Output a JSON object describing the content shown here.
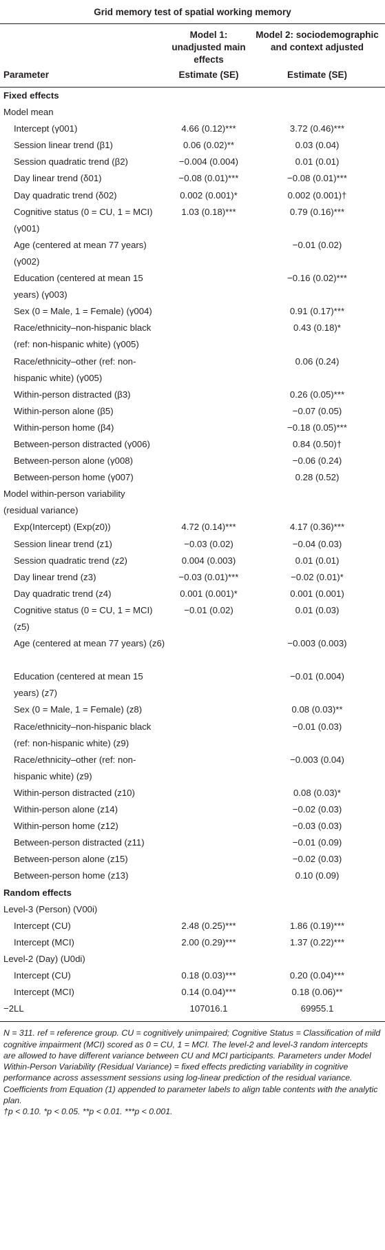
{
  "title": "Grid memory test of spatial working memory",
  "header": {
    "model1": "Model 1: unadjusted main effects",
    "model2": "Model 2: sociodemographic and context adjusted",
    "parameter": "Parameter",
    "estimate1": "Estimate (SE)",
    "estimate2": "Estimate (SE)"
  },
  "rows": [
    {
      "label": "Fixed effects",
      "level": 0,
      "m1": "",
      "m2": ""
    },
    {
      "label": "Model mean",
      "level": 1,
      "m1": "",
      "m2": ""
    },
    {
      "label": "Intercept (γ001)",
      "level": 2,
      "m1": "4.66 (0.12)***",
      "m2": "3.72 (0.46)***"
    },
    {
      "label": "Session linear trend (β1)",
      "level": 2,
      "m1": "0.06 (0.02)**",
      "m2": "0.03 (0.04)"
    },
    {
      "label": "Session quadratic trend (β2)",
      "level": 2,
      "m1": "−0.004 (0.004)",
      "m2": "0.01 (0.01)"
    },
    {
      "label": "Day linear trend (δ01)",
      "level": 2,
      "m1": "−0.08 (0.01)***",
      "m2": "−0.08 (0.01)***"
    },
    {
      "label": "Day quadratic trend (δ02)",
      "level": 2,
      "m1": "0.002 (0.001)*",
      "m2": "0.002 (0.001)†"
    },
    {
      "label": "Cognitive status (0 = CU, 1 = MCI) (γ001)",
      "level": 2,
      "tall": true,
      "m1": "1.03 (0.18)***",
      "m2": "0.79 (0.16)***"
    },
    {
      "label": "Age (centered at mean 77 years) (γ002)",
      "level": 2,
      "tall": true,
      "m1": "",
      "m2": "−0.01 (0.02)"
    },
    {
      "label": "Education (centered at mean 15 years) (γ003)",
      "level": 2,
      "tall": true,
      "m1": "",
      "m2": "−0.16 (0.02)***"
    },
    {
      "label": "Sex (0 = Male, 1 = Female) (γ004)",
      "level": 2,
      "m1": "",
      "m2": "0.91 (0.17)***"
    },
    {
      "label": "Race/ethnicity–non-hispanic black (ref: non-hispanic white) (γ005)",
      "level": 2,
      "tall": true,
      "m1": "",
      "m2": "0.43 (0.18)*"
    },
    {
      "label": "Race/ethnicity–other (ref: non-hispanic white) (γ005)",
      "level": 2,
      "tall": true,
      "m1": "",
      "m2": "0.06 (0.24)"
    },
    {
      "label": "Within-person distracted (β3)",
      "level": 2,
      "m1": "",
      "m2": "0.26 (0.05)***"
    },
    {
      "label": "Within-person alone (β5)",
      "level": 2,
      "m1": "",
      "m2": "−0.07 (0.05)"
    },
    {
      "label": "Within-person home (β4)",
      "level": 2,
      "m1": "",
      "m2": "−0.18 (0.05)***"
    },
    {
      "label": "Between-person distracted (γ006)",
      "level": 2,
      "m1": "",
      "m2": "0.84 (0.50)†"
    },
    {
      "label": "Between-person alone (γ008)",
      "level": 2,
      "m1": "",
      "m2": "−0.06 (0.24)"
    },
    {
      "label": "Between-person home (γ007)",
      "level": 2,
      "m1": "",
      "m2": "0.28 (0.52)"
    },
    {
      "label": "Model within-person variability (residual variance)",
      "level": 1,
      "tall": true,
      "m1": "",
      "m2": ""
    },
    {
      "label": "Exp(Intercept) (Exp(z0))",
      "level": 2,
      "m1": "4.72 (0.14)***",
      "m2": "4.17 (0.36)***"
    },
    {
      "label": "Session linear trend (z1)",
      "level": 2,
      "m1": "−0.03 (0.02)",
      "m2": "−0.04 (0.03)"
    },
    {
      "label": "Session quadratic trend (z2)",
      "level": 2,
      "m1": "0.004 (0.003)",
      "m2": "0.01 (0.01)"
    },
    {
      "label": "Day linear trend (z3)",
      "level": 2,
      "m1": "−0.03 (0.01)***",
      "m2": "−0.02 (0.01)*"
    },
    {
      "label": "Day quadratic trend (z4)",
      "level": 2,
      "m1": "0.001 (0.001)*",
      "m2": "0.001 (0.001)"
    },
    {
      "label": "Cognitive status (0 = CU, 1 = MCI) (z5)",
      "level": 2,
      "tall": true,
      "m1": "−0.01 (0.02)",
      "m2": "0.01 (0.03)"
    },
    {
      "label": "Age (centered at mean 77 years) (z6)",
      "level": 2,
      "tall": true,
      "m1": "",
      "m2": "−0.003 (0.003)"
    },
    {
      "label": "Education (centered at mean 15 years) (z7)",
      "level": 2,
      "tall": true,
      "m1": "",
      "m2": "−0.01 (0.004)"
    },
    {
      "label": "Sex (0 = Male, 1 = Female) (z8)",
      "level": 2,
      "m1": "",
      "m2": "0.08 (0.03)**"
    },
    {
      "label": "Race/ethnicity–non-hispanic black (ref: non-hispanic white) (z9)",
      "level": 2,
      "tall": true,
      "m1": "",
      "m2": "−0.01 (0.03)"
    },
    {
      "label": "Race/ethnicity–other (ref: non-hispanic white) (z9)",
      "level": 2,
      "tall": true,
      "m1": "",
      "m2": "−0.003 (0.04)"
    },
    {
      "label": "Within-person distracted (z10)",
      "level": 2,
      "m1": "",
      "m2": "0.08 (0.03)*"
    },
    {
      "label": "Within-person alone (z14)",
      "level": 2,
      "m1": "",
      "m2": "−0.02 (0.03)"
    },
    {
      "label": "Within-person home (z12)",
      "level": 2,
      "m1": "",
      "m2": "−0.03 (0.03)"
    },
    {
      "label": "Between-person distracted (z11)",
      "level": 2,
      "m1": "",
      "m2": "−0.01 (0.09)"
    },
    {
      "label": "Between-person alone (z15)",
      "level": 2,
      "m1": "",
      "m2": "−0.02 (0.03)"
    },
    {
      "label": "Between-person home (z13)",
      "level": 2,
      "m1": "",
      "m2": "0.10 (0.09)"
    },
    {
      "label": "Random effects",
      "level": 0,
      "m1": "",
      "m2": ""
    },
    {
      "label": "Level-3 (Person) (V00i)",
      "level": 1,
      "m1": "",
      "m2": ""
    },
    {
      "label": "Intercept (CU)",
      "level": 2,
      "m1": "2.48 (0.25)***",
      "m2": "1.86 (0.19)***"
    },
    {
      "label": "Intercept (MCI)",
      "level": 2,
      "m1": "2.00 (0.29)***",
      "m2": "1.37 (0.22)***"
    },
    {
      "label": "Level-2 (Day) (U0di)",
      "level": 1,
      "m1": "",
      "m2": ""
    },
    {
      "label": "Intercept (CU)",
      "level": 2,
      "m1": "0.18 (0.03)***",
      "m2": "0.20 (0.04)***"
    },
    {
      "label": "Intercept (MCI)",
      "level": 2,
      "m1": "0.14 (0.04)***",
      "m2": "0.18 (0.06)**"
    },
    {
      "label": "−2LL",
      "level": 1,
      "m1": "107016.1",
      "m2": "69955.1"
    }
  ],
  "footnote": {
    "text": "N = 311. ref = reference group. CU = cognitively unimpaired; Cognitive Status = Classification of mild cognitive impairment (MCI) scored as 0 = CU, 1 = MCI. The level-2 and level-3 random intercepts are allowed to have different variance between CU and MCI participants. Parameters under Model Within-Person Variability (Residual Variance) = fixed effects predicting variability in cognitive performance across assessment sessions using log-linear prediction of the residual variance. Coefficients from Equation (1) appended to parameter labels to align table contents with the analytic plan.",
    "significance": "†p < 0.10. *p < 0.05. **p < 0.01. ***p < 0.001."
  }
}
